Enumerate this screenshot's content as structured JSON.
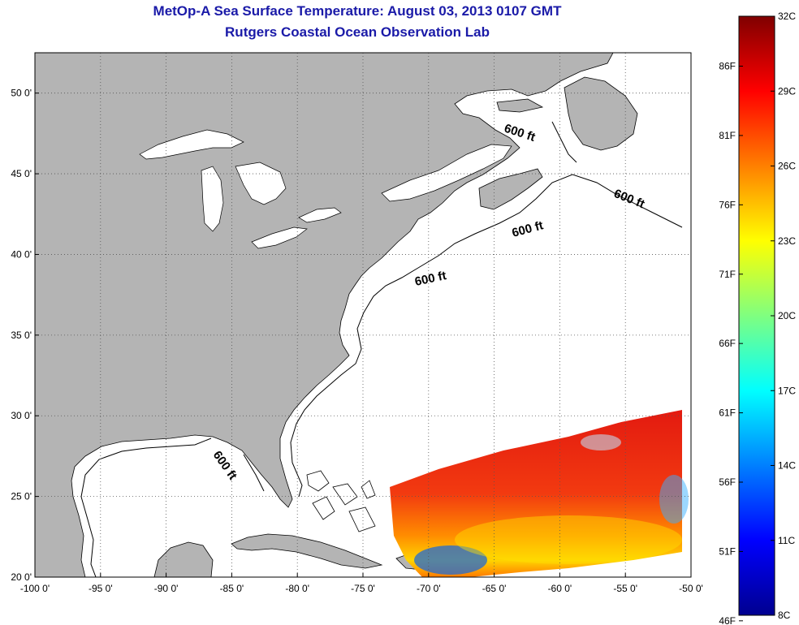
{
  "title": "MetOp-A Sea Surface Temperature:  August 03, 2013 0107 GMT",
  "subtitle": "Rutgers Coastal Ocean Observation Lab",
  "map": {
    "lon_ticks": [
      "-100 0'",
      "-95 0'",
      "-90 0'",
      "-85 0'",
      "-80 0'",
      "-75 0'",
      "-70 0'",
      "-65 0'",
      "-60 0'",
      "-55 0'",
      "-50 0'"
    ],
    "lat_ticks": [
      "50 0'",
      "45 0'",
      "40 0'",
      "35 0'",
      "30 0'",
      "25 0'",
      "20 0'"
    ],
    "lon_values": [
      -100,
      -95,
      -90,
      -85,
      -80,
      -75,
      -70,
      -65,
      -60,
      -55,
      -50
    ],
    "lat_values": [
      50,
      45,
      40,
      35,
      30,
      25,
      20
    ],
    "lon_range": [
      -100,
      -50
    ],
    "lat_range": [
      20,
      52.5
    ],
    "grid": "dotted",
    "land_color": "#b4b4b4",
    "isobath_labels": [
      "600 ft",
      "600 ft",
      "600 ft",
      "600 ft",
      "600 ft"
    ]
  },
  "colorbar": {
    "celsius_labels": [
      "32C",
      "29C",
      "26C",
      "23C",
      "20C",
      "17C",
      "14C",
      "11C",
      "8C"
    ],
    "fahrenheit_labels": [
      "86F",
      "81F",
      "76F",
      "71F",
      "66F",
      "61F",
      "56F",
      "51F",
      "46F"
    ],
    "range_c": [
      8,
      32
    ],
    "colormap": "jet"
  }
}
